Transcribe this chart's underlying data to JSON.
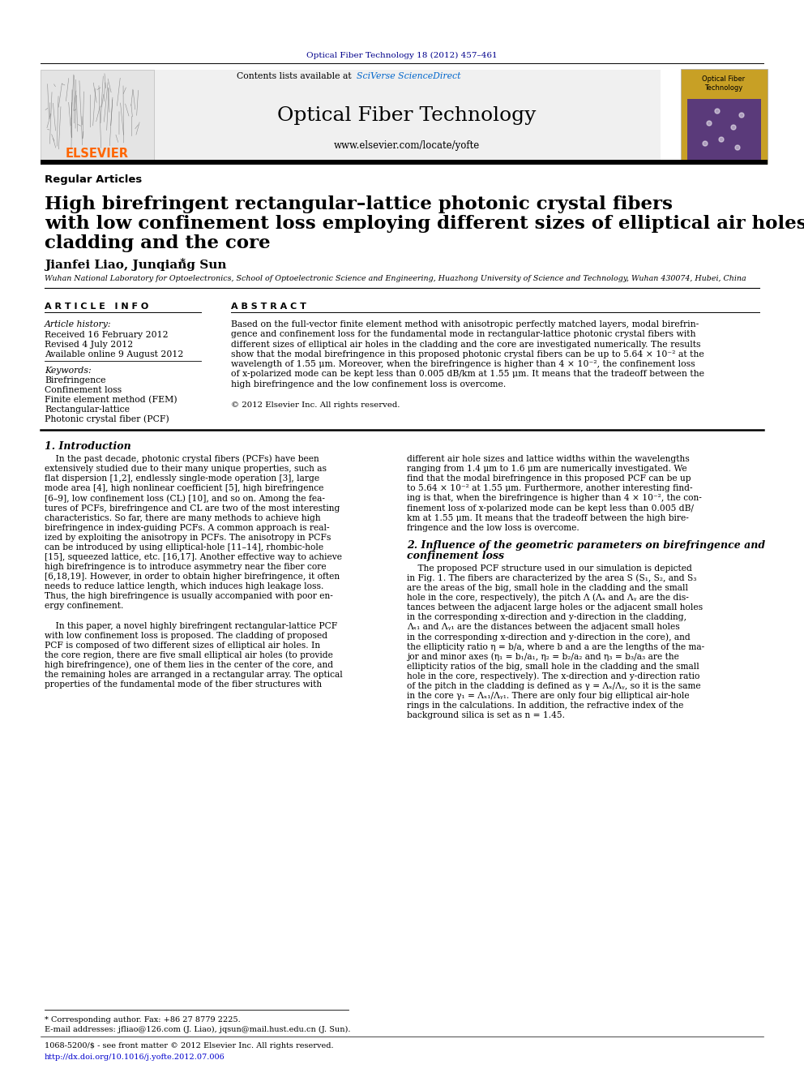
{
  "page_width": 9.92,
  "page_height": 13.23,
  "bg_color": "#ffffff",
  "top_journal_line": "Optical Fiber Technology 18 (2012) 457–461",
  "top_journal_color": "#00008B",
  "header_bg": "#f0f0f0",
  "header_title": "Optical Fiber Technology",
  "header_url": "www.elsevier.com/locate/yofte",
  "header_contents": "Contents lists available at ",
  "header_sciverse": "SciVerse ScienceDirect",
  "elsevier_color": "#FF6600",
  "section_label": "Regular Articles",
  "article_title_line1": "High birefringent rectangular–lattice photonic crystal fibers",
  "article_title_line2": "with low confinement loss employing different sizes of elliptical air holes in the",
  "article_title_line3": "cladding and the core",
  "authors": "Jianfei Liao, Junqiang Sun",
  "authors_star": " *",
  "affiliation": "Wuhan National Laboratory for Optoelectronics, School of Optoelectronic Science and Engineering, Huazhong University of Science and Technology, Wuhan 430074, Hubei, China",
  "article_info_header": "A R T I C L E   I N F O",
  "abstract_header": "A B S T R A C T",
  "article_history_label": "Article history:",
  "received": "Received 16 February 2012",
  "revised": "Revised 4 July 2012",
  "available": "Available online 9 August 2012",
  "keywords_label": "Keywords:",
  "keyword1": "Birefringence",
  "keyword2": "Confinement loss",
  "keyword3": "Finite element method (FEM)",
  "keyword4": "Rectangular-lattice",
  "keyword5": "Photonic crystal fiber (PCF)",
  "copyright": "© 2012 Elsevier Inc. All rights reserved.",
  "intro_title": "1. Introduction",
  "section2_title_line1": "2. Influence of the geometric parameters on birefringence and",
  "section2_title_line2": "confinement loss",
  "footnote_star": "* Corresponding author. Fax: +86 27 8779 2225.",
  "footnote_email": "E-mail addresses: jfliao@126.com (J. Liao), jqsun@mail.hust.edu.cn (J. Sun).",
  "footnote_issn": "1068-5200/$ - see front matter © 2012 Elsevier Inc. All rights reserved.",
  "footnote_doi": "http://dx.doi.org/10.1016/j.yofte.2012.07.006",
  "doi_color": "#0000CC",
  "sciverse_color": "#0066CC",
  "abstract_lines": [
    "Based on the full-vector finite element method with anisotropic perfectly matched layers, modal birefrin-",
    "gence and confinement loss for the fundamental mode in rectangular-lattice photonic crystal fibers with",
    "different sizes of elliptical air holes in the cladding and the core are investigated numerically. The results",
    "show that the modal birefringence in this proposed photonic crystal fibers can be up to 5.64 × 10⁻² at the",
    "wavelength of 1.55 μm. Moreover, when the birefringence is higher than 4 × 10⁻², the confinement loss",
    "of x-polarized mode can be kept less than 0.005 dB/km at 1.55 μm. It means that the tradeoff between the",
    "high birefringence and the low confinement loss is overcome."
  ],
  "intro_lines_left": [
    "    In the past decade, photonic crystal fibers (PCFs) have been",
    "extensively studied due to their many unique properties, such as",
    "flat dispersion [1,2], endlessly single-mode operation [3], large",
    "mode area [4], high nonlinear coefficient [5], high birefringence",
    "[6–9], low confinement loss (CL) [10], and so on. Among the fea-",
    "tures of PCFs, birefringence and CL are two of the most interesting",
    "characteristics. So far, there are many methods to achieve high",
    "birefringence in index-guiding PCFs. A common approach is real-",
    "ized by exploiting the anisotropy in PCFs. The anisotropy in PCFs",
    "can be introduced by using elliptical-hole [11–14], rhombic-hole",
    "[15], squeezed lattice, etc. [16,17]. Another effective way to achieve",
    "high birefringence is to introduce asymmetry near the fiber core",
    "[6,18,19]. However, in order to obtain higher birefringence, it often",
    "needs to reduce lattice length, which induces high leakage loss.",
    "Thus, the high birefringence is usually accompanied with poor en-",
    "ergy confinement.",
    "",
    "    In this paper, a novel highly birefringent rectangular-lattice PCF",
    "with low confinement loss is proposed. The cladding of proposed",
    "PCF is composed of two different sizes of elliptical air holes. In",
    "the core region, there are five small elliptical air holes (to provide",
    "high birefringence), one of them lies in the center of the core, and",
    "the remaining holes are arranged in a rectangular array. The optical",
    "properties of the fundamental mode of the fiber structures with"
  ],
  "right_col_lines": [
    "different air hole sizes and lattice widths within the wavelengths",
    "ranging from 1.4 μm to 1.6 μm are numerically investigated. We",
    "find that the modal birefringence in this proposed PCF can be up",
    "to 5.64 × 10⁻² at 1.55 μm. Furthermore, another interesting find-",
    "ing is that, when the birefringence is higher than 4 × 10⁻², the con-",
    "finement loss of x-polarized mode can be kept less than 0.005 dB/",
    "km at 1.55 μm. It means that the tradeoff between the high bire-",
    "fringence and the low loss is overcome."
  ],
  "sec2_lines": [
    "    The proposed PCF structure used in our simulation is depicted",
    "in Fig. 1. The fibers are characterized by the area S (S₁, S₂, and S₃",
    "are the areas of the big, small hole in the cladding and the small",
    "hole in the core, respectively), the pitch Λ (Λₓ and Λᵧ are the dis-",
    "tances between the adjacent large holes or the adjacent small holes",
    "in the corresponding x-direction and y-direction in the cladding,",
    "Λₓ₁ and Λᵧ₁ are the distances between the adjacent small holes",
    "in the corresponding x-direction and y-direction in the core), and",
    "the ellipticity ratio η = b/a, where b and a are the lengths of the ma-",
    "jor and minor axes (η₁ = b₁/a₁, η₂ = b₂/a₂ and η₃ = b₃/a₃ are the",
    "ellipticity ratios of the big, small hole in the cladding and the small",
    "hole in the core, respectively). The x-direction and y-direction ratio",
    "of the pitch in the cladding is defined as γ = Λₓ/Λᵧ, so it is the same",
    "in the core γ₁ = Λₓ₁/Λᵧ₁. There are only four big elliptical air-hole",
    "rings in the calculations. In addition, the refractive index of the",
    "background silica is set as n = 1.45."
  ]
}
